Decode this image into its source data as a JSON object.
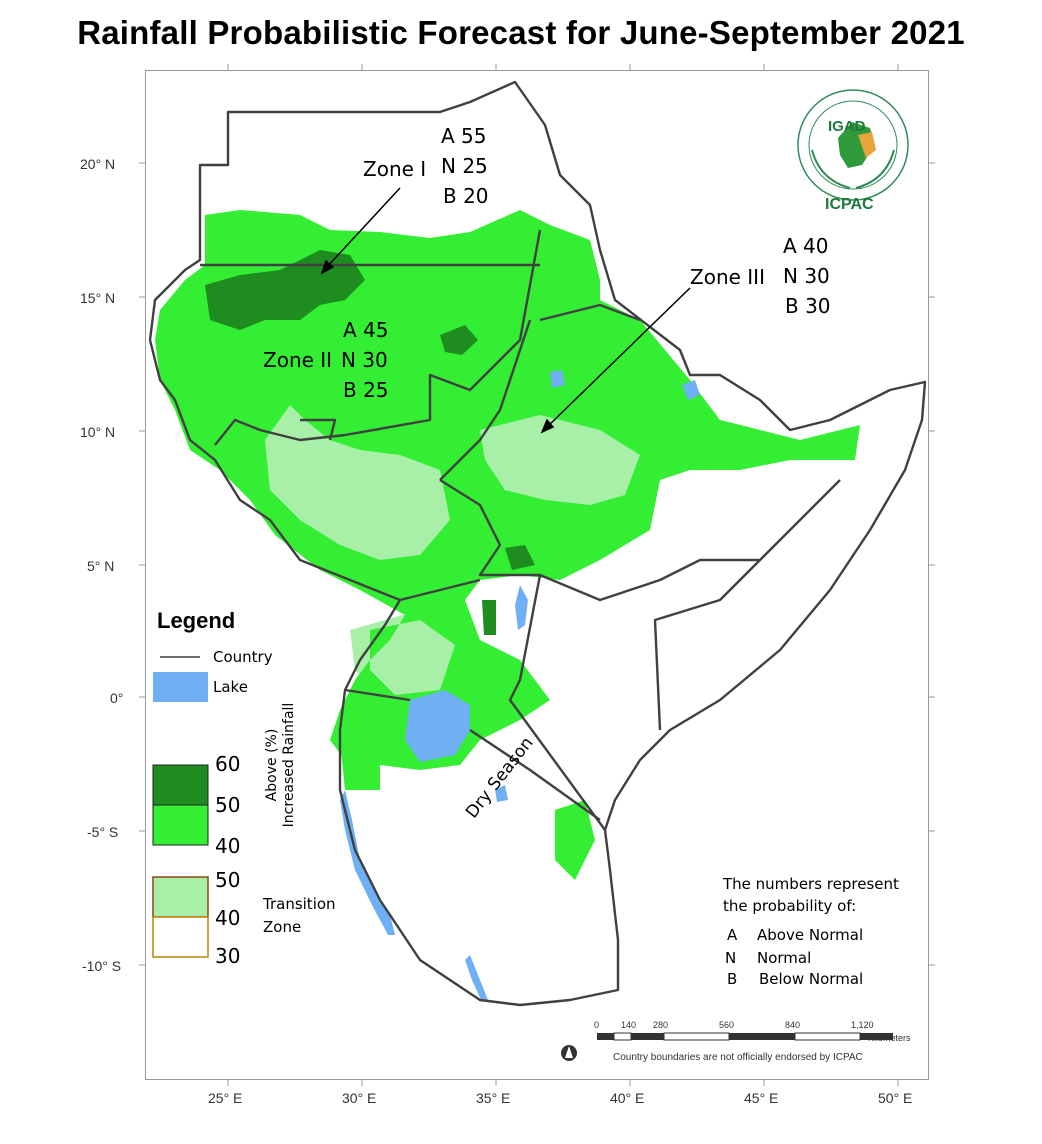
{
  "title": "Rainfall Probabilistic Forecast for June-September 2021",
  "logo": {
    "top_text": "IGAD",
    "bottom_text": "ICPAC"
  },
  "axes": {
    "lat_labels": [
      "20° N",
      "15° N",
      "10° N",
      "5° N",
      "0°",
      "-5° S",
      "-10° S"
    ],
    "lon_labels": [
      "25° E",
      "30° E",
      "35° E",
      "40° E",
      "45° E",
      "50° E"
    ]
  },
  "zones": {
    "zone1": {
      "name": "Zone I",
      "a": "A 55",
      "n": "N 25",
      "b": "B 20"
    },
    "zone2": {
      "name": "Zone II",
      "a": "A 45",
      "n": "N 30",
      "b": "B 25"
    },
    "zone3": {
      "name": "Zone III",
      "a": "A 40",
      "n": "N 30",
      "b": "B 30"
    },
    "dry": "Dry Season"
  },
  "legend": {
    "title": "Legend",
    "country": "Country",
    "lake": "Lake",
    "above_axis_line1": "Above (%)",
    "above_axis_line2": "Increased Rainfall",
    "above_values": [
      "60",
      "50",
      "40"
    ],
    "transition_values": [
      "50",
      "40",
      "30"
    ],
    "transition_label_line1": "Transition",
    "transition_label_line2": "Zone",
    "colors": {
      "dark_green": "#1e8c1e",
      "bright_green": "#33ee33",
      "pale_green": "#a8f0a8",
      "lake_blue": "#6fb0f5",
      "country_line": "#404040"
    }
  },
  "note": {
    "line1": "The numbers represent",
    "line2": "the probability of:",
    "items": [
      {
        "key": "A",
        "text": "Above Normal"
      },
      {
        "key": "N",
        "text": "Normal"
      },
      {
        "key": "B",
        "text": "Below Normal"
      }
    ]
  },
  "scale": {
    "ticks": [
      "0",
      "140",
      "280",
      "560",
      "840",
      "1,120"
    ],
    "unit": "Kilometers",
    "disclaimer": "Country boundaries are not officially endorsed by ICPAC"
  }
}
